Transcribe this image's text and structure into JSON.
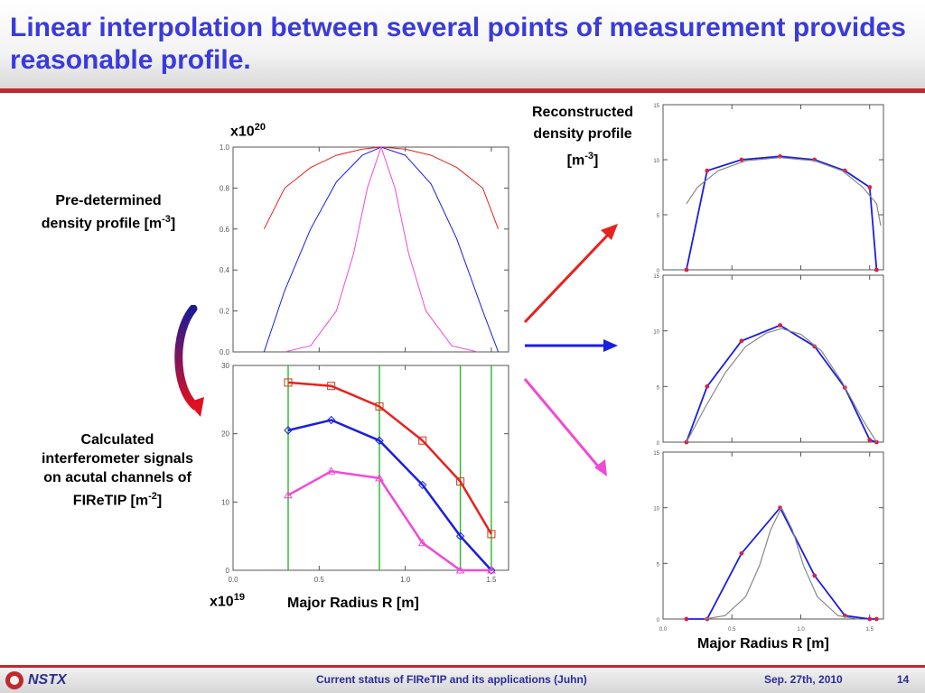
{
  "slide": {
    "title": "Linear interpolation between several points of measurement provides reasonable profile.",
    "footer": {
      "logo_text": "NSTX",
      "center_text": "Current status of FIReTIP and its applications (Juhn)",
      "date": "Sep. 27th, 2010",
      "page": "14"
    }
  },
  "labels": {
    "predetermined": [
      "Pre-determined",
      "density profile [m",
      "-3",
      "]"
    ],
    "calculated": [
      "Calculated",
      "interferometer signals",
      "on acutal channels of",
      "FIReTIP [m",
      "-2",
      "]"
    ],
    "reconstructed": [
      "Reconstructed",
      "density profile",
      "[m",
      "-3",
      "]"
    ],
    "x10_top": [
      "x10",
      "20"
    ],
    "x10_bottom": [
      "x10",
      "19"
    ],
    "major_radius_left": "Major Radius R [m]",
    "major_radius_right": "Major Radius R [m]"
  },
  "colors": {
    "title": "#3a3bd9",
    "rule": "#c0292d",
    "red": "#e8211e",
    "blue": "#1a1ee0",
    "magenta": "#f04ad6",
    "channel": "#28b828",
    "fit": "#888888"
  },
  "chart_data": [
    {
      "id": "predetermined-profiles",
      "type": "line",
      "xlim": [
        0.0,
        1.6
      ],
      "ylim": [
        0.0,
        1.0
      ],
      "yticks": [
        "0.0",
        "0.2",
        "0.4",
        "0.6",
        "0.8",
        "1.0"
      ],
      "series": [
        {
          "color": "red",
          "x": [
            0.18,
            0.3,
            0.45,
            0.6,
            0.75,
            0.86,
            1.0,
            1.15,
            1.3,
            1.45,
            1.54
          ],
          "values": [
            0.6,
            0.8,
            0.9,
            0.96,
            0.99,
            1.0,
            0.99,
            0.96,
            0.9,
            0.8,
            0.6
          ]
        },
        {
          "color": "blue",
          "x": [
            0.18,
            0.3,
            0.45,
            0.6,
            0.75,
            0.86,
            1.0,
            1.15,
            1.3,
            1.45,
            1.54
          ],
          "values": [
            0.0,
            0.3,
            0.6,
            0.83,
            0.96,
            1.0,
            0.96,
            0.82,
            0.55,
            0.2,
            0.0
          ]
        },
        {
          "color": "magenta",
          "x": [
            0.3,
            0.45,
            0.6,
            0.7,
            0.78,
            0.86,
            0.94,
            1.02,
            1.12,
            1.27,
            1.42
          ],
          "values": [
            0.0,
            0.03,
            0.2,
            0.48,
            0.8,
            1.0,
            0.8,
            0.48,
            0.2,
            0.03,
            0.0
          ]
        }
      ]
    },
    {
      "id": "interferometer-signals",
      "type": "line",
      "xlim": [
        0.0,
        1.6
      ],
      "ylim": [
        0,
        30
      ],
      "xticks": [
        "0.0",
        "0.5",
        "1.0",
        "1.5"
      ],
      "yticks": [
        "0",
        "10",
        "20",
        "30"
      ],
      "channels": [
        0.32,
        0.85,
        1.32,
        1.5
      ],
      "series": [
        {
          "color": "red",
          "marker": "square",
          "x": [
            0.32,
            0.57,
            0.85,
            1.1,
            1.32,
            1.5
          ],
          "values": [
            27.5,
            27.0,
            24.0,
            19.0,
            13.0,
            5.3
          ]
        },
        {
          "color": "blue",
          "marker": "diamond",
          "x": [
            0.32,
            0.57,
            0.85,
            1.1,
            1.32,
            1.5
          ],
          "values": [
            20.5,
            22.0,
            19.0,
            12.5,
            5.0,
            0.0
          ]
        },
        {
          "color": "magenta",
          "marker": "triangle",
          "x": [
            0.32,
            0.57,
            0.85,
            1.1,
            1.32,
            1.5
          ],
          "values": [
            11.0,
            14.5,
            13.5,
            4.0,
            0.0,
            0.0
          ]
        }
      ]
    },
    {
      "id": "reconstructed-red",
      "type": "line",
      "xlim": [
        0.0,
        1.6
      ],
      "ylim": [
        0,
        15
      ],
      "yticks": [
        "0",
        "5",
        "10",
        "15"
      ],
      "series": [
        {
          "name_color": "blue",
          "x": [
            0.17,
            0.32,
            0.57,
            0.85,
            1.1,
            1.32,
            1.5,
            1.55
          ],
          "values": [
            0.0,
            9.0,
            10.0,
            10.3,
            10.0,
            9.0,
            7.5,
            0.0
          ]
        },
        {
          "name_color": "fit",
          "x": [
            0.17,
            0.25,
            0.4,
            0.6,
            0.85,
            1.1,
            1.3,
            1.45,
            1.55,
            1.58
          ],
          "values": [
            6.0,
            7.5,
            9.0,
            9.9,
            10.2,
            9.9,
            9.0,
            7.5,
            6.0,
            4.0
          ]
        }
      ]
    },
    {
      "id": "reconstructed-blue",
      "type": "line",
      "xlim": [
        0.0,
        1.6
      ],
      "ylim": [
        0,
        15
      ],
      "yticks": [
        "0",
        "5",
        "10",
        "15"
      ],
      "series": [
        {
          "name_color": "blue",
          "x": [
            0.17,
            0.32,
            0.57,
            0.85,
            1.1,
            1.32,
            1.5,
            1.55
          ],
          "values": [
            0.0,
            5.0,
            9.1,
            10.5,
            8.6,
            4.9,
            0.2,
            0.0
          ]
        },
        {
          "name_color": "fit",
          "x": [
            0.17,
            0.3,
            0.45,
            0.6,
            0.75,
            0.86,
            1.0,
            1.15,
            1.3,
            1.45,
            1.55
          ],
          "values": [
            0.0,
            3.0,
            6.2,
            8.6,
            9.8,
            10.2,
            9.7,
            8.2,
            5.4,
            2.0,
            0.0
          ]
        }
      ]
    },
    {
      "id": "reconstructed-magenta",
      "type": "line",
      "xlim": [
        0.0,
        1.6
      ],
      "ylim": [
        0,
        15
      ],
      "xticks": [
        "0.0",
        "0.5",
        "1.0",
        "1.5"
      ],
      "yticks": [
        "0",
        "5",
        "10",
        "15"
      ],
      "series": [
        {
          "name_color": "blue",
          "x": [
            0.17,
            0.32,
            0.57,
            0.85,
            1.1,
            1.32,
            1.5,
            1.55
          ],
          "values": [
            0.0,
            0.0,
            5.9,
            10.0,
            3.9,
            0.3,
            0.0,
            0.0
          ]
        },
        {
          "name_color": "fit",
          "x": [
            0.3,
            0.45,
            0.6,
            0.7,
            0.78,
            0.86,
            0.94,
            1.02,
            1.12,
            1.27,
            1.42
          ],
          "values": [
            0.0,
            0.3,
            2.0,
            4.8,
            8.0,
            10.0,
            8.0,
            4.8,
            2.0,
            0.3,
            0.0
          ]
        }
      ]
    }
  ]
}
